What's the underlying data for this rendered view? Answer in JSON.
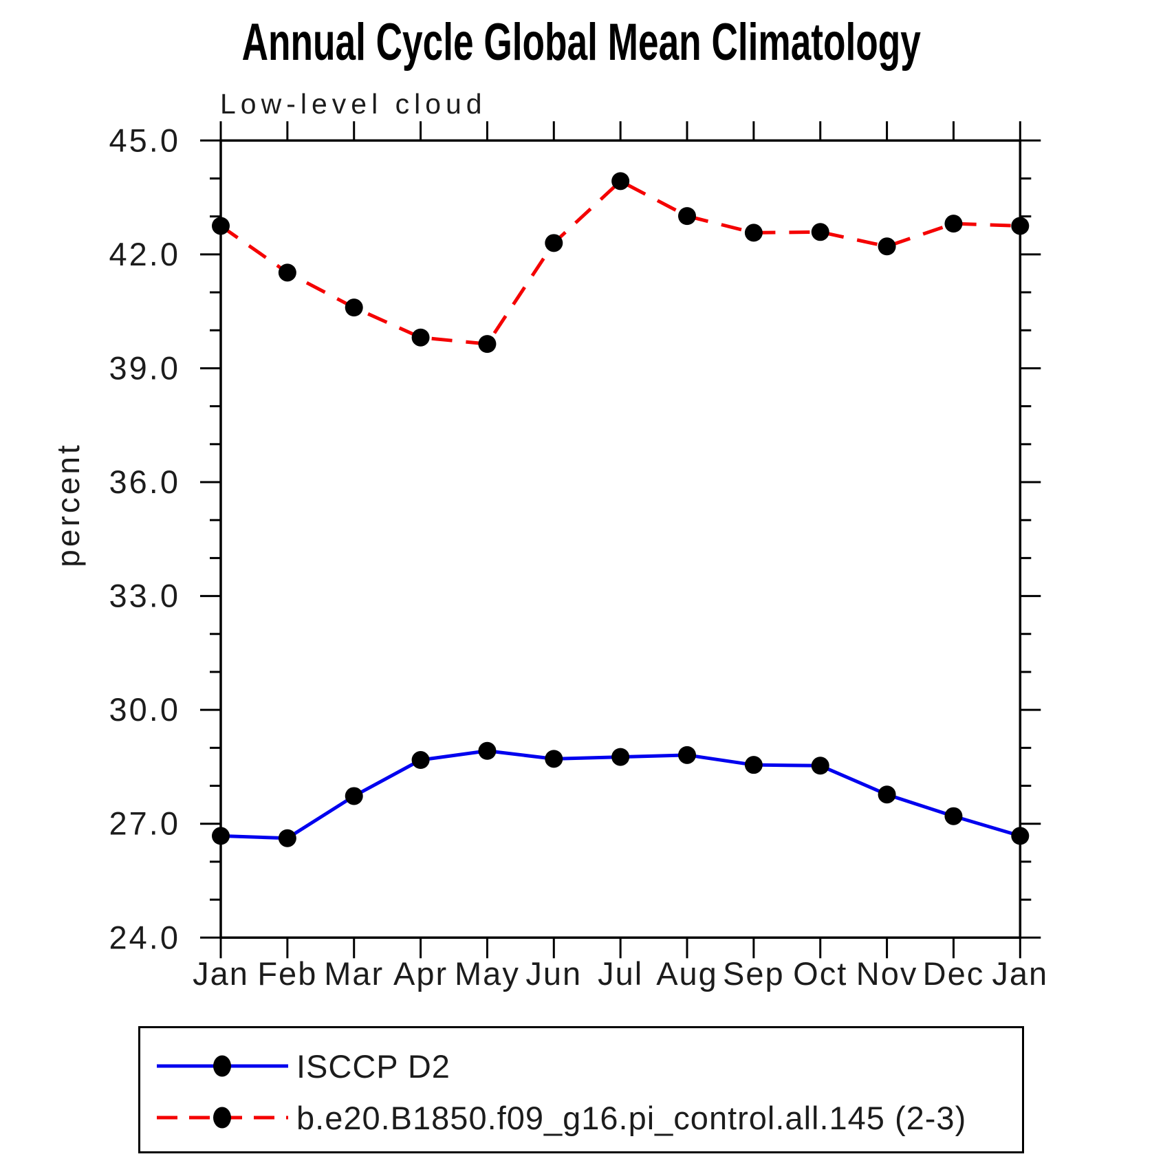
{
  "chart_data": {
    "type": "line",
    "title": "Annual Cycle Global Mean Climatology",
    "subtitle": "Low-level cloud",
    "ylabel": "percent",
    "xlabel": "",
    "categories": [
      "Jan",
      "Feb",
      "Mar",
      "Apr",
      "May",
      "Jun",
      "Jul",
      "Aug",
      "Sep",
      "Oct",
      "Nov",
      "Dec",
      "Jan"
    ],
    "ylim": [
      24.0,
      45.0
    ],
    "yticks_major": [
      24,
      27,
      30,
      33,
      36,
      39,
      42,
      45
    ],
    "ytick_labels": [
      "24.0",
      "27.0",
      "30.0",
      "33.0",
      "36.0",
      "39.0",
      "42.0",
      "45.0"
    ],
    "yminor_interval": 1.0,
    "grid": false,
    "legend_position": "bottom-left-box",
    "axis_color": "#000000",
    "text_color": "#1c1c1c",
    "series": [
      {
        "name": "ISCCP D2",
        "color": "#0000ee",
        "line_style": "solid",
        "marker": "filled-circle",
        "marker_color": "#000000",
        "values": [
          26.68,
          26.62,
          27.73,
          28.68,
          28.92,
          28.71,
          28.76,
          28.81,
          28.55,
          28.53,
          27.77,
          27.2,
          26.68
        ]
      },
      {
        "name": "b.e20.B1850.f09_g16.pi_control.all.145 (2-3)",
        "color": "#f40000",
        "line_style": "dashed",
        "marker": "filled-circle",
        "marker_color": "#000000",
        "values": [
          42.75,
          41.52,
          40.6,
          39.81,
          39.64,
          42.3,
          43.93,
          43.01,
          42.57,
          42.59,
          42.21,
          42.81,
          42.75
        ]
      }
    ]
  }
}
